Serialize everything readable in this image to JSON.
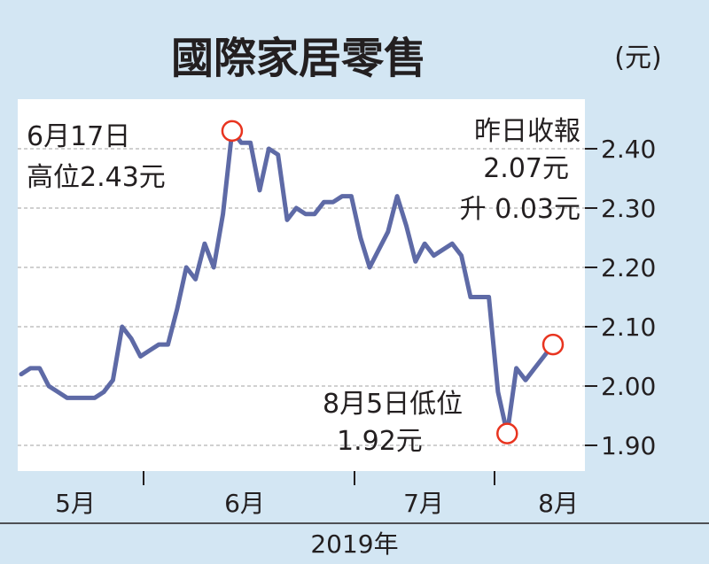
{
  "chart_data": {
    "type": "line",
    "title": "國際家居零售",
    "unit_label": "(元)",
    "year_label": "2019年",
    "month_labels": [
      "5月",
      "6月",
      "7月",
      "8月"
    ],
    "y_ticks": [
      "2.40",
      "2.30",
      "2.20",
      "2.10",
      "2.00",
      "1.90"
    ],
    "ylim": [
      1.85,
      2.5
    ],
    "grid": true,
    "series": [
      {
        "values": [
          2.02,
          2.03,
          2.03,
          2.0,
          1.99,
          1.98,
          1.98,
          1.98,
          1.98,
          1.99,
          2.01,
          2.1,
          2.08,
          2.05,
          2.06,
          2.07,
          2.07,
          2.13,
          2.2,
          2.18,
          2.24,
          2.2,
          2.29,
          2.43,
          2.41,
          2.41,
          2.33,
          2.4,
          2.39,
          2.28,
          2.3,
          2.29,
          2.29,
          2.31,
          2.31,
          2.32,
          2.32,
          2.25,
          2.2,
          2.23,
          2.26,
          2.32,
          2.27,
          2.21,
          2.24,
          2.22,
          2.23,
          2.24,
          2.22,
          2.15,
          2.15,
          2.15,
          1.99,
          1.92,
          2.03,
          2.01,
          2.03,
          2.05,
          2.07
        ]
      }
    ],
    "annotations": {
      "high": {
        "index": 23,
        "value": 2.43,
        "lines": [
          "6月17日",
          "高位2.43元"
        ]
      },
      "low": {
        "index": 53,
        "value": 1.92,
        "lines": [
          "8月5日低位",
          "1.92元"
        ]
      },
      "latest": {
        "index": 58,
        "value": 2.07,
        "lines": [
          "昨日收報",
          "2.07元",
          "升 0.03元"
        ]
      }
    },
    "colors": {
      "line": "#5e6aa6",
      "marker": "#e8341f",
      "panel": "#ffffff",
      "background": "#d3e6f3",
      "grid": "#b3b3b3"
    }
  }
}
